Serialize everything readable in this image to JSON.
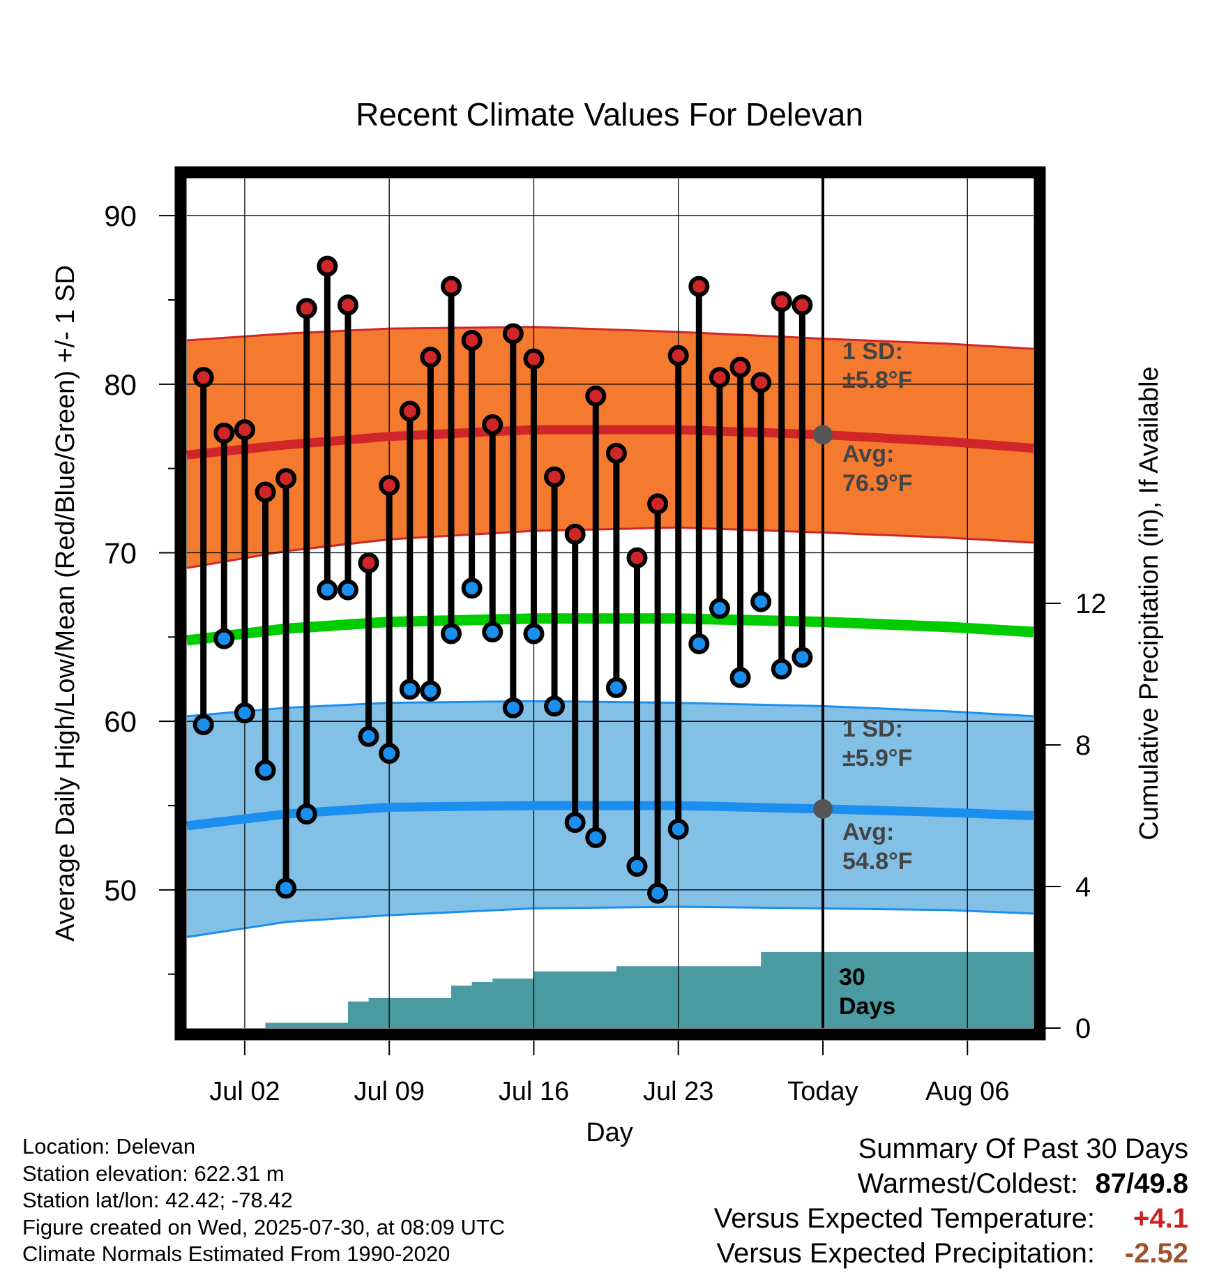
{
  "title": "Recent Climate Values For Delevan",
  "y_axis_label": "Average Daily High/Low/Mean (Red/Blue/Green) +/- 1 SD",
  "y2_axis_label": "Cumulative Precipitation (in), If Available",
  "x_axis_label": "Day",
  "annotations": {
    "high_sd_line1": "1 SD:",
    "high_sd_line2": "±5.8°F",
    "high_avg_line1": "Avg:",
    "high_avg_line2": "76.9°F",
    "low_sd_line1": "1 SD:",
    "low_sd_line2": "±5.9°F",
    "low_avg_line1": "Avg:",
    "low_avg_line2": "54.8°F",
    "precip_line1": "30",
    "precip_line2": "Days"
  },
  "info": {
    "location": "Location: Delevan",
    "elevation": "Station elevation: 622.31 m",
    "latlon": "Station lat/lon: 42.42; -78.42",
    "created": "Figure created on Wed, 2025-07-30, at 08:09 UTC",
    "normals": "Climate Normals Estimated From 1990-2020"
  },
  "summary": {
    "heading": "Summary Of Past 30 Days",
    "warm_cold_label": "Warmest/Coldest:",
    "warm_value": "87",
    "cold_value": "/49.8",
    "temp_label": "Versus Expected Temperature:",
    "temp_value": "+4.1",
    "precip_label": "Versus Expected Precipitation:",
    "precip_value": "-2.52"
  },
  "colors": {
    "high_band": "#f47a30",
    "high_avg": "#d0262a",
    "low_band": "#82c0e6",
    "low_avg": "#1b8ff0",
    "mean_line": "#00cc00",
    "precip": "#4a9aa2",
    "high_dot": "#d0262a",
    "low_dot": "#1b8ff0",
    "annotation": "#444444",
    "temp_anomaly": "#cc2222",
    "precip_anomaly": "#a0522d"
  },
  "chart_data": {
    "type": "line",
    "x_tick_labels": [
      "Jul 02",
      "Jul 09",
      "Jul 16",
      "Jul 23",
      "Today",
      "Aug 06"
    ],
    "x_tick_days": [
      2,
      9,
      16,
      23,
      30,
      37
    ],
    "xlim": [
      -0.8,
      40.2
    ],
    "ylim": [
      41.8,
      92.2
    ],
    "y_ticks": [
      50,
      60,
      70,
      80,
      90
    ],
    "y2lim": [
      0,
      24
    ],
    "y2_ticks": [
      0,
      4,
      8,
      12
    ],
    "today_day": 30,
    "days": [
      0,
      1,
      2,
      3,
      4,
      5,
      6,
      7,
      8,
      9,
      10,
      11,
      12,
      13,
      14,
      15,
      16,
      17,
      18,
      19,
      20,
      21,
      22,
      23,
      24,
      25,
      26,
      27,
      28,
      29
    ],
    "daily_high": [
      80.4,
      77.1,
      77.3,
      73.6,
      74.4,
      84.5,
      87.0,
      84.7,
      69.4,
      74.0,
      78.4,
      81.6,
      85.8,
      82.6,
      77.6,
      83.0,
      81.5,
      74.5,
      71.1,
      79.3,
      75.9,
      69.7,
      72.9,
      81.7,
      85.8,
      80.4,
      81.0,
      80.1,
      84.9,
      84.7
    ],
    "daily_low": [
      59.8,
      64.9,
      60.5,
      57.1,
      50.1,
      54.5,
      67.8,
      67.8,
      59.1,
      58.1,
      61.9,
      61.8,
      65.2,
      67.9,
      65.3,
      60.8,
      65.2,
      60.9,
      54.0,
      53.1,
      62.0,
      51.4,
      49.8,
      53.6,
      64.6,
      66.7,
      62.6,
      67.1,
      63.1,
      63.8
    ],
    "normal_days": [
      -0.8,
      4,
      9,
      16,
      23,
      30,
      36,
      40.2
    ],
    "normal_high_avg": [
      75.8,
      76.4,
      76.9,
      77.3,
      77.3,
      77.0,
      76.6,
      76.2
    ],
    "normal_high_upper": [
      82.6,
      83.0,
      83.3,
      83.4,
      83.1,
      82.7,
      82.4,
      82.1
    ],
    "normal_high_lower": [
      69.1,
      70.1,
      70.8,
      71.3,
      71.5,
      71.2,
      70.9,
      70.6
    ],
    "normal_low_avg": [
      53.8,
      54.5,
      54.9,
      55.0,
      55.0,
      54.8,
      54.6,
      54.4
    ],
    "normal_low_upper": [
      60.3,
      60.8,
      61.1,
      61.2,
      61.1,
      60.9,
      60.6,
      60.3
    ],
    "normal_low_lower": [
      47.2,
      48.1,
      48.5,
      48.9,
      49.0,
      48.9,
      48.8,
      48.6
    ],
    "normal_mean": [
      64.8,
      65.5,
      65.9,
      66.1,
      66.1,
      65.9,
      65.6,
      65.3
    ],
    "precip_days": [
      -0.8,
      1,
      2,
      3,
      4,
      5,
      6,
      7,
      8,
      9,
      10,
      11,
      12,
      13,
      14,
      15,
      16,
      17,
      18,
      19,
      20,
      21,
      22,
      23,
      24,
      25,
      26,
      27,
      28,
      29,
      30,
      40.2
    ],
    "cumulative_precip": [
      0.0,
      0.0,
      0.0,
      0.15,
      0.15,
      0.15,
      0.15,
      0.75,
      0.85,
      0.85,
      0.85,
      0.85,
      1.2,
      1.3,
      1.4,
      1.4,
      1.6,
      1.6,
      1.6,
      1.6,
      1.75,
      1.75,
      1.75,
      1.75,
      1.75,
      1.75,
      1.75,
      2.15,
      2.15,
      2.15,
      2.15,
      2.15
    ]
  }
}
